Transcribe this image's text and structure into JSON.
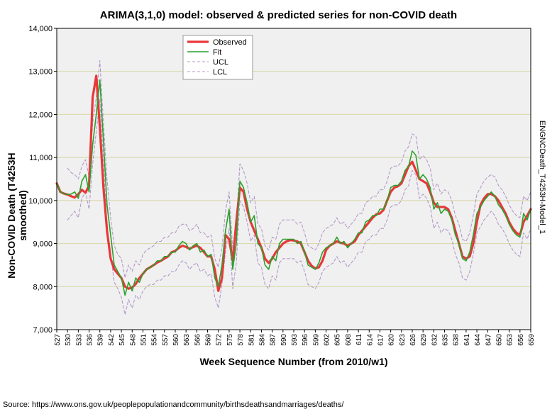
{
  "chart_data": {
    "type": "line",
    "title": "ARIMA(3,1,0) model: observed & predicted series for non-COVID death",
    "xlabel": "Week Sequence Number (from 2010/w1)",
    "ylabel": "Non-COVID Death (T4253H smoothed)",
    "right_label": "ENGNCDeath_T4253H-Model_1",
    "source": "Source: https://www.ons.gov.uk/peoplepopulationandcommunity/birthsdeathsandmarriages/deaths/",
    "xlim": [
      527,
      659
    ],
    "ylim": [
      7000,
      14000
    ],
    "y_ticks": [
      7000,
      8000,
      9000,
      10000,
      11000,
      12000,
      13000,
      14000
    ],
    "y_tick_labels": [
      "7,000",
      "8,000",
      "9,000",
      "10,000",
      "11,000",
      "12,000",
      "13,000",
      "14,000"
    ],
    "x_ticks": [
      527,
      530,
      533,
      536,
      539,
      542,
      545,
      548,
      551,
      554,
      557,
      560,
      563,
      566,
      569,
      572,
      575,
      578,
      581,
      584,
      587,
      590,
      593,
      596,
      599,
      602,
      605,
      608,
      611,
      614,
      617,
      620,
      623,
      626,
      629,
      632,
      635,
      638,
      641,
      644,
      647,
      650,
      653,
      656,
      659
    ],
    "legend": {
      "position": "top-left",
      "entries": [
        "Observed",
        "Fit",
        "UCL",
        "LCL"
      ]
    },
    "colors": {
      "observed": "#e8373a",
      "fit": "#2ca02c",
      "ucl": "#b49ac8",
      "lcl": "#b49ac8",
      "grid": "#d6d7a4",
      "plot_bg": "#f0f0f0"
    },
    "x": [
      527,
      528,
      529,
      530,
      531,
      532,
      533,
      534,
      535,
      536,
      537,
      538,
      539,
      540,
      541,
      542,
      543,
      544,
      545,
      546,
      547,
      548,
      549,
      550,
      551,
      552,
      553,
      554,
      555,
      556,
      557,
      558,
      559,
      560,
      561,
      562,
      563,
      564,
      565,
      566,
      567,
      568,
      569,
      570,
      571,
      572,
      573,
      574,
      575,
      576,
      577,
      578,
      579,
      580,
      581,
      582,
      583,
      584,
      585,
      586,
      587,
      588,
      589,
      590,
      591,
      592,
      593,
      594,
      595,
      596,
      597,
      598,
      599,
      600,
      601,
      602,
      603,
      604,
      605,
      606,
      607,
      608,
      609,
      610,
      611,
      612,
      613,
      614,
      615,
      616,
      617,
      618,
      619,
      620,
      621,
      622,
      623,
      624,
      625,
      626,
      627,
      628,
      629,
      630,
      631,
      632,
      633,
      634,
      635,
      636,
      637,
      638,
      639,
      640,
      641,
      642,
      643,
      644,
      645,
      646,
      647,
      648,
      649,
      650,
      651,
      652,
      653,
      654,
      655,
      656,
      657,
      658,
      659
    ],
    "series": [
      {
        "name": "Observed",
        "values": [
          10400,
          10200,
          10160,
          10140,
          10100,
          10070,
          10150,
          10250,
          10180,
          10350,
          12400,
          12900,
          11700,
          10300,
          9300,
          8650,
          8400,
          8300,
          8200,
          8000,
          7950,
          7980,
          8060,
          8200,
          8300,
          8400,
          8450,
          8500,
          8560,
          8600,
          8650,
          8700,
          8800,
          8830,
          8900,
          8950,
          8920,
          8880,
          8920,
          8950,
          8900,
          8800,
          8700,
          8700,
          8400,
          7900,
          8200,
          9200,
          9100,
          8600,
          9500,
          10300,
          10200,
          9800,
          9500,
          9300,
          9100,
          8900,
          8650,
          8550,
          8650,
          8800,
          8900,
          9000,
          9050,
          9080,
          9070,
          9050,
          9000,
          8800,
          8600,
          8480,
          8420,
          8450,
          8600,
          8850,
          8950,
          9000,
          9050,
          9020,
          9000,
          8950,
          9000,
          9050,
          9200,
          9300,
          9400,
          9500,
          9600,
          9680,
          9700,
          9780,
          10000,
          10200,
          10300,
          10330,
          10400,
          10600,
          10800,
          10900,
          10700,
          10500,
          10450,
          10400,
          10200,
          9950,
          9850,
          9850,
          9850,
          9800,
          9600,
          9300,
          9000,
          8700,
          8650,
          8700,
          9000,
          9500,
          9900,
          10050,
          10150,
          10150,
          10100,
          10000,
          9850,
          9700,
          9500,
          9350,
          9250,
          9200,
          9500,
          9650,
          9800
        ]
      },
      {
        "name": "Fit",
        "values": [
          10400,
          10200,
          10160,
          10140,
          10150,
          10200,
          10050,
          10450,
          10600,
          10200,
          11300,
          12000,
          12800,
          11400,
          9900,
          9200,
          8500,
          8350,
          8200,
          7800,
          8100,
          7900,
          8200,
          8100,
          8300,
          8400,
          8450,
          8500,
          8600,
          8600,
          8700,
          8700,
          8800,
          8800,
          8950,
          9050,
          9000,
          8850,
          8950,
          9000,
          8800,
          8850,
          8700,
          8750,
          8200,
          8000,
          8500,
          9300,
          9800,
          8400,
          9000,
          10450,
          10300,
          9950,
          9500,
          9650,
          9000,
          8900,
          8500,
          8400,
          8700,
          8600,
          9000,
          9100,
          9100,
          9100,
          9100,
          9000,
          9050,
          8800,
          8500,
          8450,
          8400,
          8550,
          8800,
          8900,
          8950,
          9000,
          9150,
          9000,
          9050,
          8900,
          9000,
          9100,
          9250,
          9250,
          9500,
          9550,
          9650,
          9650,
          9800,
          9800,
          10000,
          10300,
          10350,
          10350,
          10450,
          10700,
          10800,
          11150,
          11050,
          10500,
          10600,
          10500,
          10300,
          9800,
          9950,
          9700,
          9800,
          9750,
          9550,
          9200,
          9000,
          8650,
          8600,
          8800,
          9200,
          9700,
          9850,
          10000,
          10100,
          10200,
          10100,
          9900,
          9800,
          9650,
          9450,
          9300,
          9200,
          9150,
          9700,
          9550,
          9800
        ]
      },
      {
        "name": "UCL",
        "values": [
          null,
          null,
          null,
          10750,
          10650,
          10600,
          10500,
          10800,
          10950,
          10550,
          11800,
          12400,
          13250,
          11800,
          10500,
          9600,
          8950,
          8750,
          8650,
          8200,
          8500,
          8350,
          8600,
          8500,
          8750,
          8850,
          8900,
          8950,
          9050,
          9050,
          9150,
          9150,
          9250,
          9250,
          9400,
          9450,
          9450,
          9300,
          9350,
          9450,
          9250,
          9250,
          9150,
          9200,
          8650,
          8450,
          8900,
          9750,
          10200,
          8850,
          9450,
          10850,
          10700,
          10400,
          9950,
          10100,
          9450,
          9350,
          8950,
          8850,
          9150,
          9100,
          9450,
          9550,
          9550,
          9550,
          9550,
          9450,
          9500,
          9250,
          8950,
          8900,
          8850,
          9000,
          9250,
          9350,
          9400,
          9450,
          9600,
          9450,
          9500,
          9350,
          9450,
          9550,
          9700,
          9700,
          9950,
          10000,
          10100,
          10100,
          10250,
          10250,
          10450,
          10750,
          10800,
          10800,
          10900,
          11150,
          11250,
          11550,
          11500,
          10950,
          11050,
          10950,
          10750,
          10250,
          10400,
          10150,
          10250,
          10200,
          10000,
          9650,
          9450,
          9100,
          9050,
          9250,
          9650,
          10150,
          10300,
          10450,
          10550,
          10600,
          10550,
          10350,
          10250,
          10100,
          9900,
          9750,
          9650,
          9600,
          10100,
          10000,
          10200
        ]
      },
      {
        "name": "LCL",
        "values": [
          null,
          null,
          null,
          9550,
          9650,
          9750,
          9600,
          10050,
          10200,
          9800,
          10850,
          11600,
          12350,
          10950,
          9400,
          8750,
          8100,
          7950,
          7750,
          7350,
          7700,
          7500,
          7800,
          7700,
          7900,
          8000,
          8050,
          8050,
          8150,
          8150,
          8250,
          8250,
          8350,
          8350,
          8500,
          8600,
          8550,
          8400,
          8500,
          8550,
          8350,
          8400,
          8250,
          8300,
          7750,
          7500,
          8050,
          8800,
          9350,
          7950,
          8550,
          10000,
          9850,
          9500,
          9050,
          9200,
          8550,
          8450,
          8050,
          7950,
          8250,
          8150,
          8550,
          8650,
          8650,
          8650,
          8650,
          8550,
          8600,
          8350,
          8050,
          8000,
          7950,
          8100,
          8350,
          8450,
          8500,
          8550,
          8700,
          8550,
          8600,
          8450,
          8550,
          8650,
          8800,
          8800,
          9050,
          9100,
          9200,
          9200,
          9350,
          9350,
          9550,
          9850,
          9900,
          9900,
          10000,
          10250,
          10350,
          10700,
          10600,
          10050,
          10150,
          10050,
          9850,
          9350,
          9500,
          9250,
          9350,
          9300,
          9100,
          8750,
          8550,
          8200,
          8150,
          8350,
          8750,
          9250,
          9400,
          9550,
          9650,
          9750,
          9650,
          9450,
          9350,
          9200,
          9000,
          8850,
          8750,
          8700,
          9250,
          9100,
          9350
        ]
      }
    ]
  }
}
